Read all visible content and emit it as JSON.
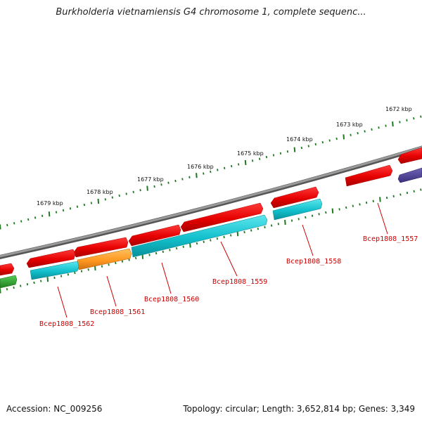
{
  "title": "Burkholderia vietnamiensis G4 chromosome 1, complete sequenc...",
  "footer": {
    "accession": "Accession: NC_009256",
    "summary": "Topology: circular; Length: 3,652,814 bp; Genes: 3,349"
  },
  "colors": {
    "backbone": "#8a8a8a",
    "tick": "#1f7a1f",
    "forward_gene": "#ee1111",
    "reverse_gene": "#11bbcc",
    "highlight_gene": "#ff9922",
    "purple_gene": "#4a3f8f",
    "green_gene": "#33aa33",
    "label": "#cc0000"
  },
  "kbp_labels": [
    "1672 kbp",
    "1673 kbp",
    "1674 kbp",
    "1675 kbp",
    "1676 kbp",
    "1677 kbp",
    "1678 kbp",
    "1679 kbp"
  ],
  "gene_labels": [
    "Bcep1808_1557",
    "Bcep1808_1558",
    "Bcep1808_1559",
    "Bcep1808_1560",
    "Bcep1808_1561",
    "Bcep1808_1562"
  ]
}
